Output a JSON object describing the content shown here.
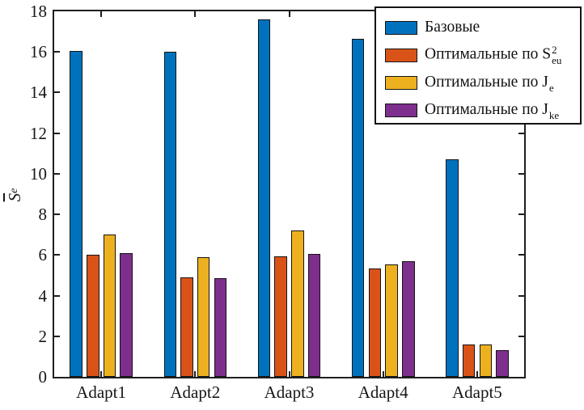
{
  "chart_data": {
    "type": "bar",
    "title": "",
    "xlabel": "",
    "ylabel": "S̄e (mean error measure, overline S subscript e)",
    "ylim": [
      0,
      18
    ],
    "ytick_step": 2,
    "grid": false,
    "legend_position": "top-right",
    "categories": [
      "Adapt1",
      "Adapt2",
      "Adapt3",
      "Adapt4",
      "Adapt5"
    ],
    "series": [
      {
        "name": "Базовые",
        "color": "#0072BD",
        "values": [
          16.05,
          16.0,
          17.6,
          16.65,
          10.7
        ]
      },
      {
        "name": "Оптимальные по S²eu",
        "color": "#D95319",
        "values": [
          6.0,
          4.9,
          5.95,
          5.35,
          1.6
        ]
      },
      {
        "name": "Оптимальные по Je",
        "color": "#EDB120",
        "values": [
          7.0,
          5.9,
          7.2,
          5.55,
          1.6
        ]
      },
      {
        "name": "Оптимальные по Jke",
        "color": "#7E2F8E",
        "values": [
          6.1,
          4.85,
          6.05,
          5.7,
          1.3
        ]
      }
    ]
  },
  "axes": {
    "ylabel_base": "S",
    "ylabel_sub": "e",
    "yticks": [
      "0",
      "2",
      "4",
      "6",
      "8",
      "10",
      "12",
      "14",
      "16",
      "18"
    ],
    "xticklabels": [
      "Adapt1",
      "Adapt2",
      "Adapt3",
      "Adapt4",
      "Adapt5"
    ]
  },
  "legend": {
    "items": [
      {
        "base": "Базовые",
        "sup": "",
        "sub": "",
        "color": "#0072BD"
      },
      {
        "base": "Оптимальные по S",
        "sup": "2",
        "sub": "eu",
        "color": "#D95319"
      },
      {
        "base": "Оптимальные по J",
        "sup": "",
        "sub": "e",
        "color": "#EDB120"
      },
      {
        "base": "Оптимальные по J",
        "sup": "",
        "sub": "ke",
        "color": "#7E2F8E"
      }
    ]
  }
}
